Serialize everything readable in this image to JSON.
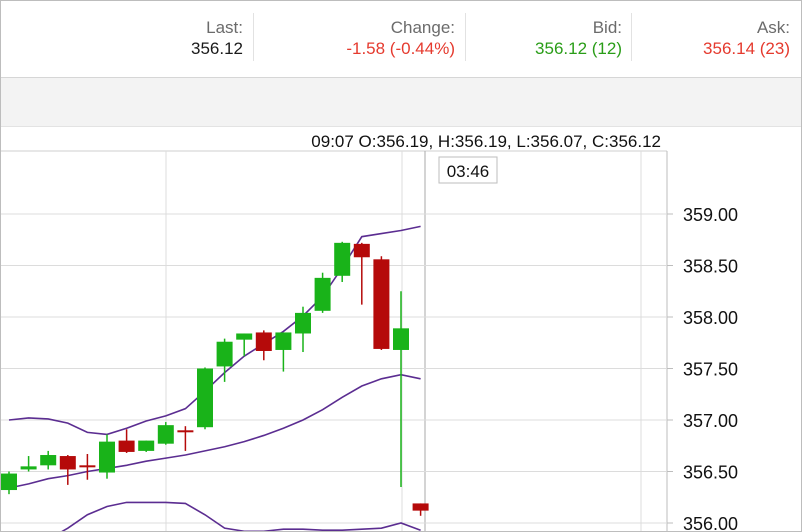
{
  "quote": {
    "last": {
      "label": "Last:",
      "value": "356.12"
    },
    "change": {
      "label": "Change:",
      "value": "-1.58 (-0.44%)"
    },
    "bid": {
      "label": "Bid:",
      "value": "356.12 (12)"
    },
    "ask": {
      "label": "Ask:",
      "value": "356.14 (23)"
    }
  },
  "colors": {
    "up": "#19b319",
    "down": "#b50a0a",
    "band": "#5b2d91",
    "positive_text": "#2a9d18",
    "negative_text": "#e53a2e",
    "grid": "#dcdcdc"
  },
  "chart_data": {
    "type": "candlestick",
    "ohlc_readout": "09:07   O:356.19, H:356.19, L:356.07, C:356.12",
    "crosshair_label": "03:46",
    "y_ticks": [
      "359.00",
      "358.50",
      "358.00",
      "357.50",
      "357.00",
      "356.50",
      "356.00"
    ],
    "y_tick_values": [
      359.0,
      358.5,
      358.0,
      357.5,
      357.0,
      356.5,
      356.0
    ],
    "ylim": [
      355.95,
      359.35
    ],
    "grid": true,
    "candles": [
      {
        "o": 356.32,
        "h": 356.5,
        "l": 356.28,
        "c": 356.48
      },
      {
        "o": 356.52,
        "h": 356.65,
        "l": 356.5,
        "c": 356.55
      },
      {
        "o": 356.56,
        "h": 356.7,
        "l": 356.52,
        "c": 356.66
      },
      {
        "o": 356.65,
        "h": 356.66,
        "l": 356.37,
        "c": 356.52
      },
      {
        "o": 356.56,
        "h": 356.67,
        "l": 356.42,
        "c": 356.55
      },
      {
        "o": 356.49,
        "h": 356.86,
        "l": 356.43,
        "c": 356.79
      },
      {
        "o": 356.8,
        "h": 356.91,
        "l": 356.68,
        "c": 356.69
      },
      {
        "o": 356.7,
        "h": 356.8,
        "l": 356.69,
        "c": 356.8
      },
      {
        "o": 356.77,
        "h": 356.98,
        "l": 356.76,
        "c": 356.95
      },
      {
        "o": 356.9,
        "h": 356.94,
        "l": 356.7,
        "c": 356.89
      },
      {
        "o": 356.93,
        "h": 357.51,
        "l": 356.91,
        "c": 357.5
      },
      {
        "o": 357.52,
        "h": 357.79,
        "l": 357.37,
        "c": 357.76
      },
      {
        "o": 357.78,
        "h": 357.84,
        "l": 357.62,
        "c": 357.84
      },
      {
        "o": 357.85,
        "h": 357.87,
        "l": 357.58,
        "c": 357.67
      },
      {
        "o": 357.68,
        "h": 357.85,
        "l": 357.47,
        "c": 357.85
      },
      {
        "o": 357.84,
        "h": 358.1,
        "l": 357.66,
        "c": 358.04
      },
      {
        "o": 358.06,
        "h": 358.43,
        "l": 358.04,
        "c": 358.38
      },
      {
        "o": 358.4,
        "h": 358.73,
        "l": 358.34,
        "c": 358.72
      },
      {
        "o": 358.71,
        "h": 358.72,
        "l": 358.12,
        "c": 358.58
      },
      {
        "o": 358.56,
        "h": 358.59,
        "l": 357.68,
        "c": 357.69
      },
      {
        "o": 357.68,
        "h": 358.25,
        "l": 356.35,
        "c": 357.89
      },
      {
        "o": 356.19,
        "h": 356.19,
        "l": 356.07,
        "c": 356.12
      }
    ],
    "band_upper": [
      357.0,
      357.02,
      357.01,
      356.97,
      356.88,
      356.86,
      356.92,
      356.99,
      357.04,
      357.11,
      357.28,
      357.46,
      357.62,
      357.74,
      357.86,
      358.01,
      358.2,
      358.48,
      358.78,
      358.81,
      358.84,
      358.88
    ],
    "band_middle": [
      356.34,
      356.38,
      356.43,
      356.46,
      356.5,
      356.53,
      356.56,
      356.6,
      356.63,
      356.66,
      356.7,
      356.74,
      356.79,
      356.85,
      356.92,
      357.0,
      357.1,
      357.22,
      357.33,
      357.4,
      357.44,
      357.4
    ],
    "band_lower": [
      355.7,
      355.75,
      355.84,
      355.95,
      356.08,
      356.16,
      356.2,
      356.2,
      356.2,
      356.19,
      356.08,
      355.95,
      355.92,
      355.92,
      355.94,
      355.94,
      355.93,
      355.93,
      355.94,
      355.95,
      356.0,
      355.93
    ]
  }
}
